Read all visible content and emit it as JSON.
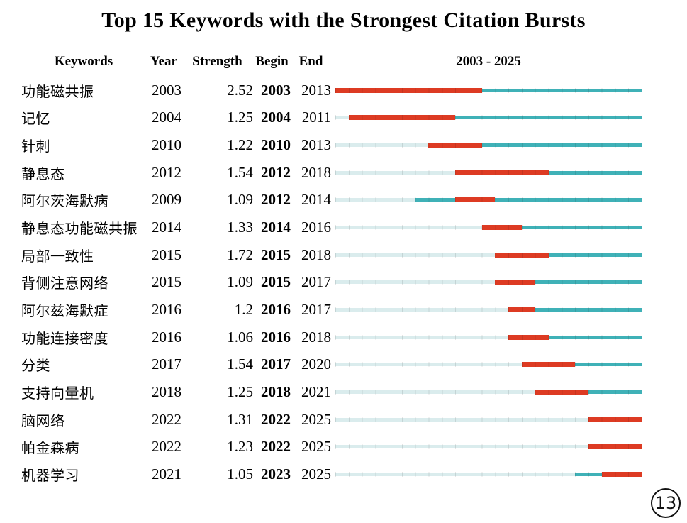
{
  "title": "Top 15 Keywords with the Strongest Citation Bursts",
  "header": {
    "keywords": "Keywords",
    "year": "Year",
    "strength": "Strength",
    "begin": "Begin",
    "end": "End",
    "timeline": "2003 - 2025"
  },
  "page_badge": "13",
  "colors": {
    "burst": "#dd3b23",
    "active": "#3fb1b7",
    "inactive": "#daeced"
  },
  "chart_data": {
    "type": "table",
    "title": "Top 15 Keywords with the Strongest Citation Bursts",
    "columns": [
      "Keywords",
      "Year",
      "Strength",
      "Begin",
      "End"
    ],
    "timeline_label": "2003 - 2025",
    "timeline_range": [
      2003,
      2025
    ],
    "rows": [
      {
        "keyword": "功能磁共振",
        "year": 2003,
        "strength": "2.52",
        "begin": 2003,
        "end": 2013
      },
      {
        "keyword": "记忆",
        "year": 2004,
        "strength": "1.25",
        "begin": 2004,
        "end": 2011
      },
      {
        "keyword": "针刺",
        "year": 2010,
        "strength": "1.22",
        "begin": 2010,
        "end": 2013
      },
      {
        "keyword": "静息态",
        "year": 2012,
        "strength": "1.54",
        "begin": 2012,
        "end": 2018
      },
      {
        "keyword": "阿尔茨海默病",
        "year": 2009,
        "strength": "1.09",
        "begin": 2012,
        "end": 2014
      },
      {
        "keyword": "静息态功能磁共振",
        "year": 2014,
        "strength": "1.33",
        "begin": 2014,
        "end": 2016
      },
      {
        "keyword": "局部一致性",
        "year": 2015,
        "strength": "1.72",
        "begin": 2015,
        "end": 2018
      },
      {
        "keyword": "背侧注意网络",
        "year": 2015,
        "strength": "1.09",
        "begin": 2015,
        "end": 2017
      },
      {
        "keyword": "阿尔兹海默症",
        "year": 2016,
        "strength": "1.2",
        "begin": 2016,
        "end": 2017
      },
      {
        "keyword": "功能连接密度",
        "year": 2016,
        "strength": "1.06",
        "begin": 2016,
        "end": 2018
      },
      {
        "keyword": "分类",
        "year": 2017,
        "strength": "1.54",
        "begin": 2017,
        "end": 2020
      },
      {
        "keyword": "支持向量机",
        "year": 2018,
        "strength": "1.25",
        "begin": 2018,
        "end": 2021
      },
      {
        "keyword": "脑网络",
        "year": 2022,
        "strength": "1.31",
        "begin": 2022,
        "end": 2025
      },
      {
        "keyword": "帕金森病",
        "year": 2022,
        "strength": "1.23",
        "begin": 2022,
        "end": 2025
      },
      {
        "keyword": "机器学习",
        "year": 2021,
        "strength": "1.05",
        "begin": 2023,
        "end": 2025
      }
    ]
  }
}
